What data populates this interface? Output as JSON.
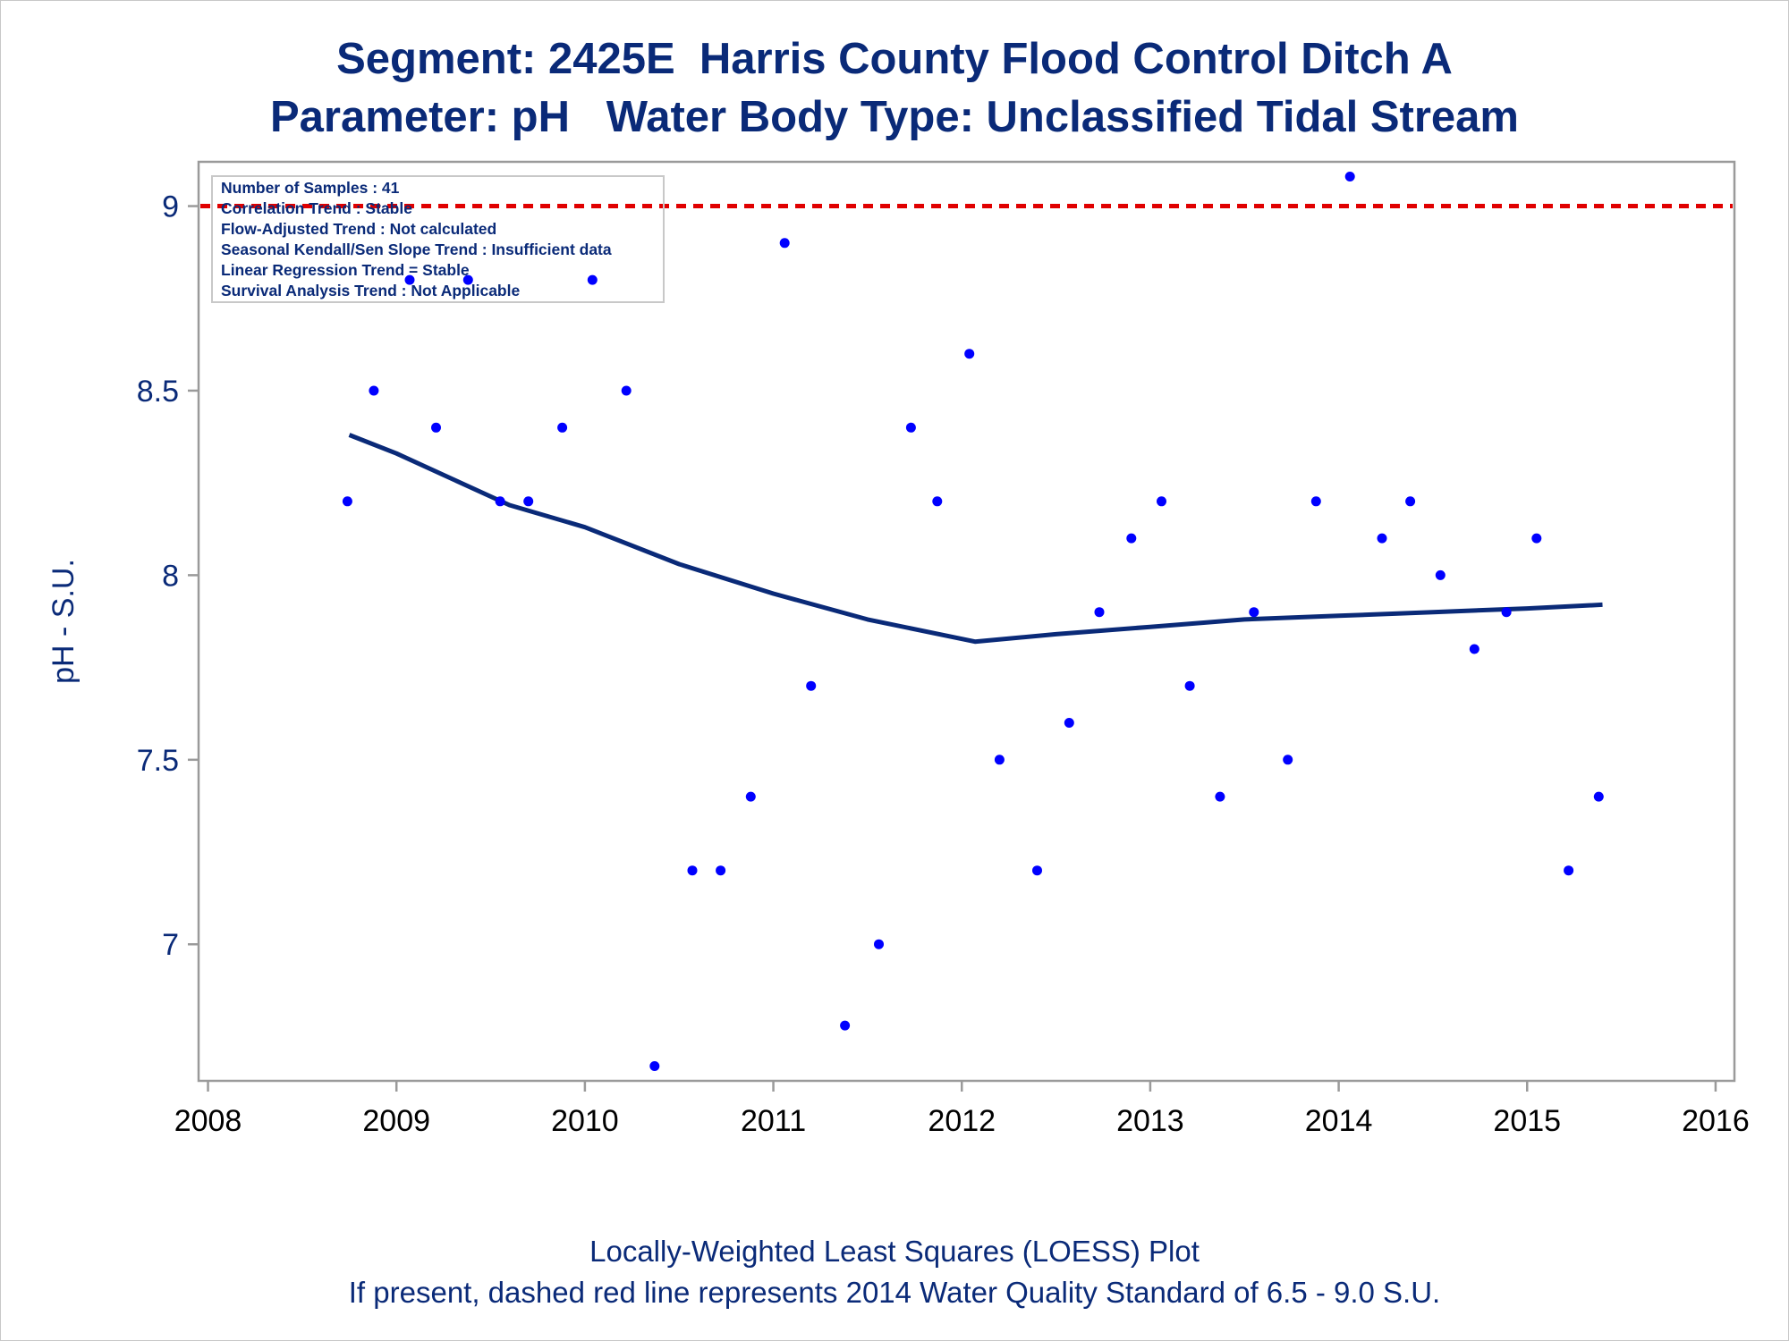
{
  "chart_data": {
    "type": "scatter",
    "title": "Segment: 2425E  Harris County Flood Control Ditch A",
    "subtitle": "Parameter: pH   Water Body Type: Unclassified Tidal Stream",
    "xlabel": "",
    "ylabel": "pH - S.U.",
    "footnotes": [
      "Locally-Weighted Least Squares (LOESS) Plot",
      "If present, dashed red line represents 2014 Water Quality Standard of 6.5 - 9.0 S.U."
    ],
    "info_box": [
      "Number of Samples : 41",
      "Correlation Trend : Stable",
      "Flow-Adjusted Trend : Not calculated",
      "Seasonal Kendall/Sen Slope Trend : Insufficient data",
      "Linear Regression Trend = Stable",
      "Survival Analysis Trend : Not Applicable"
    ],
    "xlim": [
      2007.95,
      2016.1
    ],
    "ylim": [
      6.63,
      9.12
    ],
    "xticks": [
      2008,
      2009,
      2010,
      2011,
      2012,
      2013,
      2014,
      2015,
      2016
    ],
    "yticks": [
      7,
      7.5,
      8,
      8.5,
      9
    ],
    "grid": false,
    "reference_line": {
      "y": 9.0,
      "style": "dashed",
      "color": "#e00000"
    },
    "series": [
      {
        "type": "scatter",
        "color": "#0000ff",
        "points": [
          [
            2008.74,
            8.2
          ],
          [
            2008.88,
            8.5
          ],
          [
            2009.07,
            8.8
          ],
          [
            2009.21,
            8.4
          ],
          [
            2009.38,
            8.8
          ],
          [
            2009.55,
            8.2
          ],
          [
            2009.7,
            8.2
          ],
          [
            2009.88,
            8.4
          ],
          [
            2010.04,
            8.8
          ],
          [
            2010.22,
            8.5
          ],
          [
            2010.37,
            6.67
          ],
          [
            2010.57,
            7.2
          ],
          [
            2010.72,
            7.2
          ],
          [
            2010.88,
            7.4
          ],
          [
            2011.06,
            8.9
          ],
          [
            2011.2,
            7.7
          ],
          [
            2011.38,
            6.78
          ],
          [
            2011.56,
            7.0
          ],
          [
            2011.73,
            8.4
          ],
          [
            2011.87,
            8.2
          ],
          [
            2012.04,
            8.6
          ],
          [
            2012.2,
            7.5
          ],
          [
            2012.4,
            7.2
          ],
          [
            2012.57,
            7.6
          ],
          [
            2012.73,
            7.9
          ],
          [
            2012.9,
            8.1
          ],
          [
            2013.06,
            8.2
          ],
          [
            2013.21,
            7.7
          ],
          [
            2013.37,
            7.4
          ],
          [
            2013.55,
            7.9
          ],
          [
            2013.73,
            7.5
          ],
          [
            2013.88,
            8.2
          ],
          [
            2014.06,
            9.08
          ],
          [
            2014.23,
            8.1
          ],
          [
            2014.38,
            8.2
          ],
          [
            2014.54,
            8.0
          ],
          [
            2014.72,
            7.8
          ],
          [
            2014.89,
            7.9
          ],
          [
            2015.05,
            8.1
          ],
          [
            2015.22,
            7.2
          ],
          [
            2015.38,
            7.4
          ]
        ]
      },
      {
        "type": "line",
        "color": "#0a2a78",
        "points": [
          [
            2008.75,
            8.38
          ],
          [
            2009.0,
            8.33
          ],
          [
            2009.3,
            8.26
          ],
          [
            2009.6,
            8.19
          ],
          [
            2010.0,
            8.13
          ],
          [
            2010.5,
            8.03
          ],
          [
            2011.0,
            7.95
          ],
          [
            2011.5,
            7.88
          ],
          [
            2012.07,
            7.82
          ],
          [
            2012.5,
            7.84
          ],
          [
            2013.0,
            7.86
          ],
          [
            2013.5,
            7.88
          ],
          [
            2014.0,
            7.89
          ],
          [
            2014.5,
            7.9
          ],
          [
            2015.0,
            7.91
          ],
          [
            2015.4,
            7.92
          ]
        ]
      }
    ]
  }
}
